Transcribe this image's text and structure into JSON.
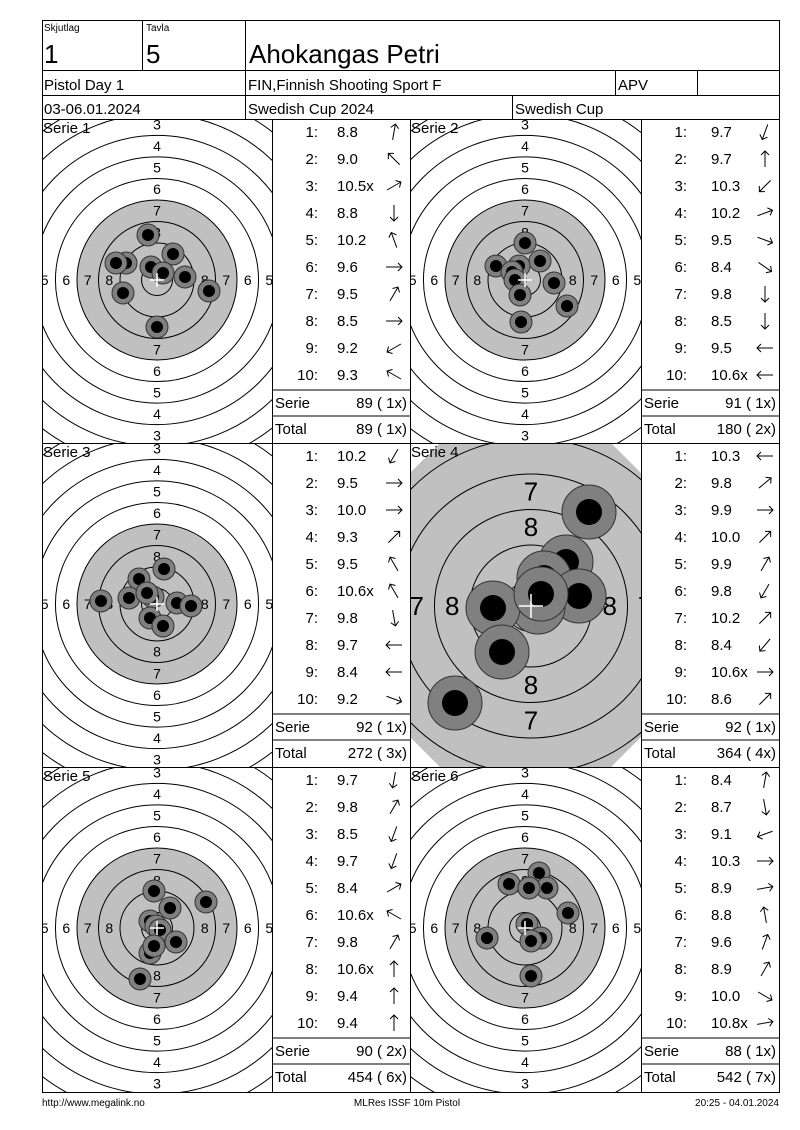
{
  "header": {
    "skjutlag_label": "Skjutlag",
    "skjutlag": "1",
    "tavla_label": "Tavla",
    "tavla": "5",
    "name": "Ahokangas Petri",
    "event": "Pistol Day 1",
    "club": "FIN,Finnish Shooting Sport F",
    "class": "APV",
    "dates": "03-06.01.2024",
    "competition": "Swedish Cup 2024",
    "cup": "Swedish Cup"
  },
  "target_labels": [
    "3",
    "4",
    "5",
    "6",
    "7",
    "8"
  ],
  "series": [
    {
      "title": "Serie 1",
      "shots": [
        {
          "n": "1:",
          "score": "8.8"
        },
        {
          "n": "2:",
          "score": "9.0"
        },
        {
          "n": "3:",
          "score": "10.5x"
        },
        {
          "n": "4:",
          "score": "8.8"
        },
        {
          "n": "5:",
          "score": "10.2"
        },
        {
          "n": "6:",
          "score": "9.6"
        },
        {
          "n": "7:",
          "score": "9.5"
        },
        {
          "n": "8:",
          "score": "8.5"
        },
        {
          "n": "9:",
          "score": "9.2"
        },
        {
          "n": "10:",
          "score": "9.3"
        }
      ],
      "serie_label": "Serie",
      "serie_total": "89 ( 1x)",
      "total_label": "Total",
      "total": "89 ( 1x)"
    },
    {
      "title": "Serie 2",
      "shots": [
        {
          "n": "1:",
          "score": "9.7"
        },
        {
          "n": "2:",
          "score": "9.7"
        },
        {
          "n": "3:",
          "score": "10.3"
        },
        {
          "n": "4:",
          "score": "10.2"
        },
        {
          "n": "5:",
          "score": "9.5"
        },
        {
          "n": "6:",
          "score": "8.4"
        },
        {
          "n": "7:",
          "score": "9.8"
        },
        {
          "n": "8:",
          "score": "8.5"
        },
        {
          "n": "9:",
          "score": "9.5"
        },
        {
          "n": "10:",
          "score": "10.6x"
        }
      ],
      "serie_label": "Serie",
      "serie_total": "91 ( 1x)",
      "total_label": "Total",
      "total": "180 ( 2x)"
    },
    {
      "title": "Serie 3",
      "shots": [
        {
          "n": "1:",
          "score": "10.2"
        },
        {
          "n": "2:",
          "score": "9.5"
        },
        {
          "n": "3:",
          "score": "10.0"
        },
        {
          "n": "4:",
          "score": "9.3"
        },
        {
          "n": "5:",
          "score": "9.5"
        },
        {
          "n": "6:",
          "score": "10.6x"
        },
        {
          "n": "7:",
          "score": "9.8"
        },
        {
          "n": "8:",
          "score": "9.7"
        },
        {
          "n": "9:",
          "score": "8.4"
        },
        {
          "n": "10:",
          "score": "9.2"
        }
      ],
      "serie_label": "Serie",
      "serie_total": "92 ( 1x)",
      "total_label": "Total",
      "total": "272 ( 3x)"
    },
    {
      "title": "Serie 4",
      "shots": [
        {
          "n": "1:",
          "score": "10.3"
        },
        {
          "n": "2:",
          "score": "9.8"
        },
        {
          "n": "3:",
          "score": "9.9"
        },
        {
          "n": "4:",
          "score": "10.0"
        },
        {
          "n": "5:",
          "score": "9.9"
        },
        {
          "n": "6:",
          "score": "9.8"
        },
        {
          "n": "7:",
          "score": "10.2"
        },
        {
          "n": "8:",
          "score": "8.4"
        },
        {
          "n": "9:",
          "score": "10.6x"
        },
        {
          "n": "10:",
          "score": "8.6"
        }
      ],
      "serie_label": "Serie",
      "serie_total": "92 ( 1x)",
      "total_label": "Total",
      "total": "364 ( 4x)"
    },
    {
      "title": "Serie 5",
      "shots": [
        {
          "n": "1:",
          "score": "9.7"
        },
        {
          "n": "2:",
          "score": "9.8"
        },
        {
          "n": "3:",
          "score": "8.5"
        },
        {
          "n": "4:",
          "score": "9.7"
        },
        {
          "n": "5:",
          "score": "8.4"
        },
        {
          "n": "6:",
          "score": "10.6x"
        },
        {
          "n": "7:",
          "score": "9.8"
        },
        {
          "n": "8:",
          "score": "10.6x"
        },
        {
          "n": "9:",
          "score": "9.4"
        },
        {
          "n": "10:",
          "score": "9.4"
        }
      ],
      "serie_label": "Serie",
      "serie_total": "90 ( 2x)",
      "total_label": "Total",
      "total": "454 ( 6x)"
    },
    {
      "title": "Serie 6",
      "shots": [
        {
          "n": "1:",
          "score": "8.4"
        },
        {
          "n": "2:",
          "score": "8.7"
        },
        {
          "n": "3:",
          "score": "9.1"
        },
        {
          "n": "4:",
          "score": "10.3"
        },
        {
          "n": "5:",
          "score": "8.9"
        },
        {
          "n": "6:",
          "score": "8.8"
        },
        {
          "n": "7:",
          "score": "9.6"
        },
        {
          "n": "8:",
          "score": "8.9"
        },
        {
          "n": "9:",
          "score": "10.0"
        },
        {
          "n": "10:",
          "score": "10.8x"
        }
      ],
      "serie_label": "Serie",
      "serie_total": "88 ( 1x)",
      "total_label": "Total",
      "total": "542 ( 7x)"
    }
  ],
  "footer": {
    "left": "http://www.megalink.no",
    "center": "MLRes ISSF 10m Pistol",
    "right": "20:25 - 04.01.2024"
  }
}
